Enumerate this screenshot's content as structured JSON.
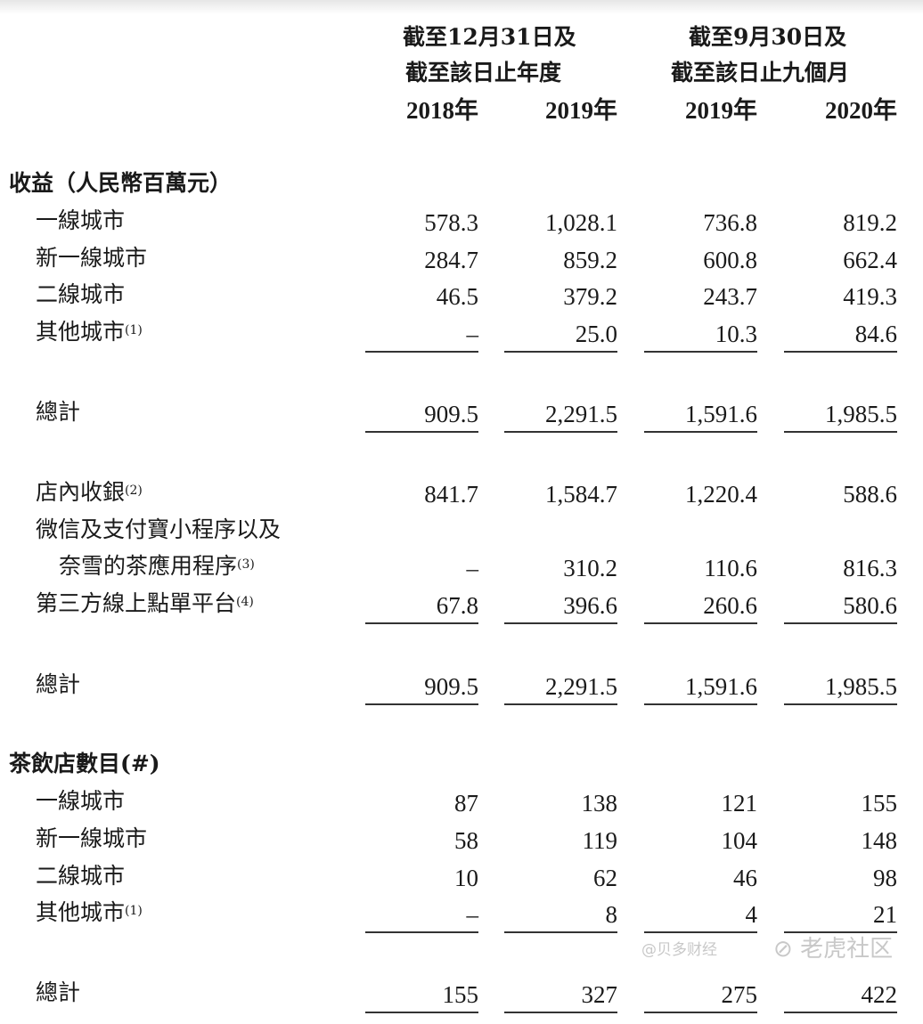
{
  "header": {
    "group1_line1": "截至12月31日及",
    "group1_line2": "截至該日止年度",
    "group2_line1": "截至9月30日及",
    "group2_line2": "截至該日止九個月",
    "years": [
      "2018年",
      "2019年",
      "2019年",
      "2020年"
    ]
  },
  "sections": [
    {
      "title": "收益（人民幣百萬元）",
      "rows": [
        {
          "label": "一線城市",
          "note": "",
          "values": [
            "578.3",
            "1,028.1",
            "736.8",
            "819.2"
          ]
        },
        {
          "label": "新一線城市",
          "note": "",
          "values": [
            "284.7",
            "859.2",
            "600.8",
            "662.4"
          ]
        },
        {
          "label": "二線城市",
          "note": "",
          "values": [
            "46.5",
            "379.2",
            "243.7",
            "419.3"
          ]
        },
        {
          "label": "其他城市",
          "note": "(1)",
          "values": [
            "–",
            "25.0",
            "10.3",
            "84.6"
          ]
        },
        {
          "label": "總計",
          "note": "",
          "values": [
            "909.5",
            "2,291.5",
            "1,591.6",
            "1,985.5"
          ]
        },
        {
          "label": "店內收銀",
          "note": "(2)",
          "values": [
            "841.7",
            "1,584.7",
            "1,220.4",
            "588.6"
          ]
        },
        {
          "label": "微信及支付寶小程序以及",
          "note": "",
          "values": [
            "",
            "",
            "",
            ""
          ]
        },
        {
          "label": "奈雪的茶應用程序",
          "note": "(3)",
          "values": [
            "–",
            "310.2",
            "110.6",
            "816.3"
          ]
        },
        {
          "label": "第三方線上點單平台",
          "note": "(4)",
          "values": [
            "67.8",
            "396.6",
            "260.6",
            "580.6"
          ]
        },
        {
          "label": "總計",
          "note": "",
          "values": [
            "909.5",
            "2,291.5",
            "1,591.6",
            "1,985.5"
          ]
        }
      ]
    },
    {
      "title": "茶飲店數目(#)",
      "rows": [
        {
          "label": "一線城市",
          "note": "",
          "values": [
            "87",
            "138",
            "121",
            "155"
          ]
        },
        {
          "label": "新一線城市",
          "note": "",
          "values": [
            "58",
            "119",
            "104",
            "148"
          ]
        },
        {
          "label": "二線城市",
          "note": "",
          "values": [
            "10",
            "62",
            "46",
            "98"
          ]
        },
        {
          "label": "其他城市",
          "note": "(1)",
          "values": [
            "–",
            "8",
            "4",
            "21"
          ]
        },
        {
          "label": "總計",
          "note": "",
          "values": [
            "155",
            "327",
            "275",
            "422"
          ]
        }
      ]
    }
  ],
  "watermark": {
    "brand": "老虎社区",
    "author": "@贝多财经"
  }
}
